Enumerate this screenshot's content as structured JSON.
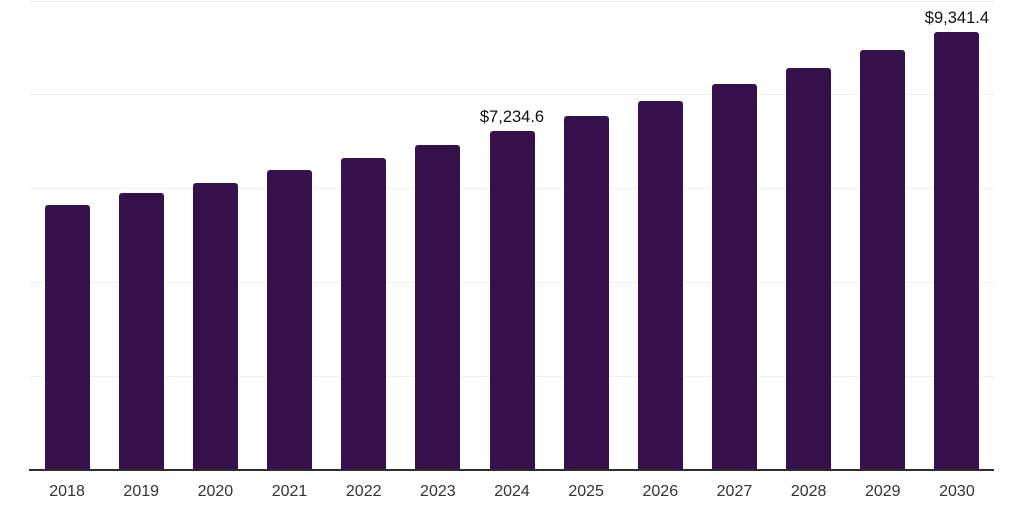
{
  "chart_data": {
    "type": "bar",
    "title": "",
    "xlabel": "",
    "ylabel": "",
    "categories": [
      "2018",
      "2019",
      "2020",
      "2021",
      "2022",
      "2023",
      "2024",
      "2025",
      "2026",
      "2027",
      "2028",
      "2029",
      "2030"
    ],
    "values": [
      5660,
      5900,
      6130,
      6390,
      6660,
      6940,
      7234.6,
      7550,
      7870,
      8230,
      8580,
      8950,
      9341.4
    ],
    "labeled_points": [
      {
        "category": "2024",
        "label": "$7,234.6"
      },
      {
        "category": "2030",
        "label": "$9,341.4"
      }
    ],
    "ylim": [
      0,
      10000
    ],
    "gridline_values": [
      2000,
      4000,
      6000,
      8000,
      10000
    ],
    "grid": true,
    "legend": false,
    "y_axis_tick_labels_visible": false,
    "colors": {
      "bar": "#36114B",
      "axis": "#2d2d2d",
      "gridline": "#efefef",
      "x_tick_label": "#333333",
      "data_label": "#111111",
      "background": "#ffffff"
    }
  }
}
